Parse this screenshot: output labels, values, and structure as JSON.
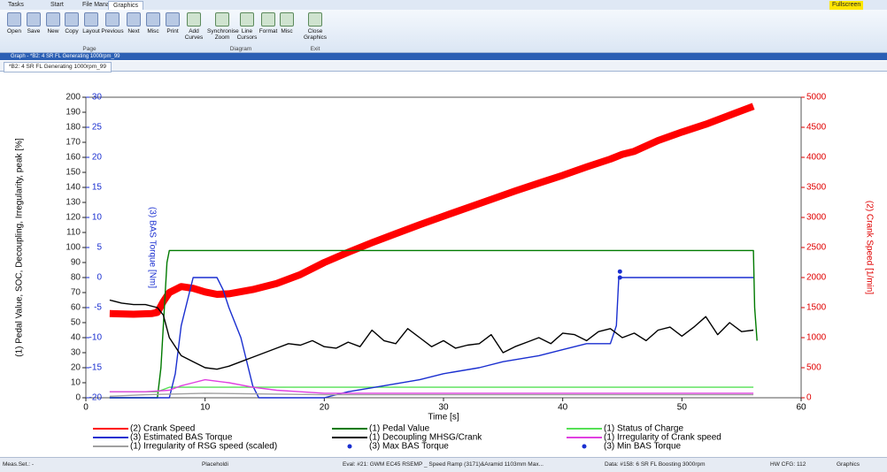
{
  "ribbon": {
    "tabs": [
      "Tasks",
      "Start",
      "File Manager",
      "Graphics"
    ],
    "fullscreen": "Fullscreen",
    "buttons": [
      "Open",
      "Save",
      "New",
      "Copy",
      "Layout",
      "Previous",
      "Next",
      "Misc",
      "Print",
      "Add Curves",
      "Synchronise Zoom",
      "Line Cursors",
      "Format",
      "Misc",
      "Close Graphics"
    ],
    "groups": [
      "Page",
      "Diagram",
      "Exit"
    ]
  },
  "window_title": "Graph - *B2: 4 SR FL Generating 1000rpm_99",
  "document_tab": "*B2: 4 SR FL Generating 1000rpm_99",
  "chart_data": {
    "type": "line",
    "xlabel": "Time [s]",
    "ylabel": "(1) Pedal Value, SOC, Decoupling, Irregularity, peak [%]",
    "y2label": "(2) Crank Speed [1/min]",
    "y3label": "(3) BAS Torque [Nm]",
    "xlim": [
      0,
      60
    ],
    "xticks": [
      0,
      10,
      20,
      30,
      40,
      50,
      60
    ],
    "ylim": [
      0,
      200
    ],
    "yticks": [
      0,
      10,
      20,
      30,
      40,
      50,
      60,
      70,
      80,
      90,
      100,
      110,
      120,
      130,
      140,
      150,
      160,
      170,
      180,
      190,
      200
    ],
    "y2lim": [
      0,
      5000
    ],
    "y2ticks": [
      0,
      500,
      1000,
      1500,
      2000,
      2500,
      3000,
      3500,
      4000,
      4500,
      5000
    ],
    "y3lim": [
      -20,
      30
    ],
    "y3ticks": [
      -20,
      -15,
      -10,
      -5,
      0,
      5,
      10,
      15,
      20,
      25,
      30
    ],
    "grid": false,
    "series": [
      {
        "name": "(2) Crank Speed",
        "color": "#ff0000",
        "axis": "y2",
        "x": [
          2,
          4,
          5.5,
          6,
          6.5,
          7,
          8,
          9,
          10,
          11,
          12,
          14,
          16,
          18,
          20,
          22,
          24,
          26,
          28,
          30,
          32,
          34,
          36,
          38,
          40,
          42,
          44,
          45,
          46,
          48,
          50,
          52,
          54,
          56
        ],
        "values": [
          1400,
          1390,
          1400,
          1420,
          1600,
          1750,
          1850,
          1820,
          1760,
          1720,
          1730,
          1800,
          1900,
          2050,
          2250,
          2420,
          2580,
          2730,
          2880,
          3020,
          3160,
          3300,
          3440,
          3570,
          3700,
          3840,
          3970,
          4050,
          4100,
          4280,
          4420,
          4550,
          4700,
          4850
        ]
      },
      {
        "name": "(1) Pedal Value",
        "color": "#007a00",
        "x": [
          2,
          6,
          6.3,
          6.8,
          7,
          56,
          56.1,
          56.3
        ],
        "values": [
          0,
          0,
          20,
          90,
          98,
          98,
          60,
          38
        ]
      },
      {
        "name": "(1) Status of Charge",
        "color": "#55e055",
        "x": [
          2,
          6,
          7,
          56
        ],
        "values": [
          4,
          4,
          7,
          7
        ]
      },
      {
        "name": "(3) Estimated BAS Torque",
        "color": "#1a2fd0",
        "axis": "y3",
        "x": [
          2,
          7,
          7.5,
          8,
          9,
          10,
          11,
          11.5,
          12,
          13,
          14,
          14.5,
          20,
          22,
          25,
          28,
          30,
          33,
          35,
          38,
          40,
          42,
          44,
          44.5,
          44.7,
          56
        ],
        "values": [
          -20,
          -20,
          -16,
          -8,
          0,
          0,
          0,
          -2,
          -5,
          -10,
          -18,
          -20,
          -20,
          -19,
          -18,
          -17,
          -16,
          -15,
          -14,
          -13,
          -12,
          -11,
          -11,
          -8,
          0,
          0
        ]
      },
      {
        "name": "(1) Decoupling MHSG/Crank",
        "color": "#000000",
        "x": [
          2,
          3,
          4,
          5,
          6,
          6.5,
          7,
          8,
          9,
          10,
          11,
          12,
          13,
          14,
          15,
          16,
          17,
          18,
          19,
          20,
          21,
          22,
          23,
          24,
          25,
          26,
          27,
          28,
          29,
          30,
          31,
          32,
          33,
          34,
          35,
          36,
          37,
          38,
          39,
          40,
          41,
          42,
          43,
          44,
          45,
          46,
          47,
          48,
          49,
          50,
          51,
          52,
          53,
          54,
          55,
          56
        ],
        "values": [
          65,
          63,
          62,
          62,
          60,
          55,
          40,
          28,
          24,
          20,
          19,
          21,
          24,
          27,
          30,
          33,
          36,
          35,
          38,
          34,
          33,
          37,
          34,
          45,
          38,
          36,
          46,
          40,
          34,
          38,
          33,
          35,
          36,
          42,
          30,
          34,
          37,
          40,
          36,
          43,
          42,
          38,
          44,
          46,
          40,
          43,
          38,
          45,
          47,
          41,
          47,
          54,
          42,
          50,
          44,
          45
        ]
      },
      {
        "name": "(1) Irregularity of Crank speed",
        "color": "#e040e0",
        "x": [
          2,
          5,
          7,
          8,
          9,
          10,
          11,
          12,
          14,
          16,
          18,
          20,
          25,
          30,
          40,
          56
        ],
        "values": [
          4,
          4,
          5,
          8,
          10,
          12,
          11,
          10,
          7,
          5,
          4,
          3,
          3,
          3,
          3,
          3
        ]
      },
      {
        "name": "(1) Irregularity of RSG speed (scaled)",
        "color": "#a0a0a0",
        "x": [
          2,
          5,
          10,
          20,
          30,
          40,
          50,
          56
        ],
        "values": [
          1,
          2,
          3,
          2,
          2,
          2,
          2,
          2
        ]
      },
      {
        "name": "(3) Max BAS Torque",
        "color": "#1a2fd0",
        "axis": "y3",
        "type": "scatter",
        "x": [
          44.8
        ],
        "values": [
          1
        ]
      },
      {
        "name": "(3) Min BAS Torque",
        "color": "#1a2fd0",
        "axis": "y3",
        "type": "scatter",
        "x": [
          44.8
        ],
        "values": [
          0
        ]
      }
    ]
  },
  "status_bar": [
    "Meas.Set.: -",
    "Placeholdi",
    "Eval: #21: GWM EC45 RSEMP _ Speed Ramp (3171)&Aramid 1103mm Max...",
    "Data: #158: 6 SR FL Boosting 3000rpm",
    "HW CFG: 112",
    "Graphics"
  ]
}
